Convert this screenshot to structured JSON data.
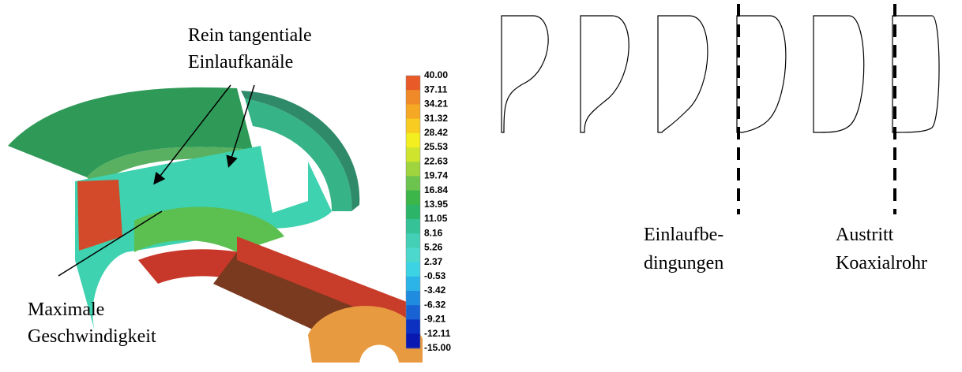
{
  "annotations": {
    "inlet_channels": [
      "Rein tangentiale",
      "Einlaufkanäle"
    ],
    "max_velocity": [
      "Maximale",
      "Geschwindigkeit"
    ],
    "inlet_conditions": [
      "Einlaufbe-",
      "dingungen"
    ],
    "outlet": [
      "Austritt",
      "Koaxialrohr"
    ]
  },
  "colorbar": {
    "labels": [
      "40.00",
      "37.11",
      "34.21",
      "31.32",
      "28.42",
      "25.53",
      "22.63",
      "19.74",
      "16.84",
      "13.95",
      "11.05",
      "8.16",
      "5.26",
      "2.37",
      "-0.53",
      "-3.42",
      "-6.32",
      "-9.21",
      "-12.11",
      "-15.00"
    ],
    "colors": [
      "#e85a28",
      "#f08a28",
      "#f5a823",
      "#f8cc20",
      "#f3ee20",
      "#cfe42c",
      "#a0d43e",
      "#6cc44e",
      "#3cb648",
      "#2cb468",
      "#34c296",
      "#44d0b6",
      "#4cd8cc",
      "#3cd4e4",
      "#2cb4e8",
      "#208ce0",
      "#1862d4",
      "#0c30c0",
      "#0818b0"
    ]
  }
}
